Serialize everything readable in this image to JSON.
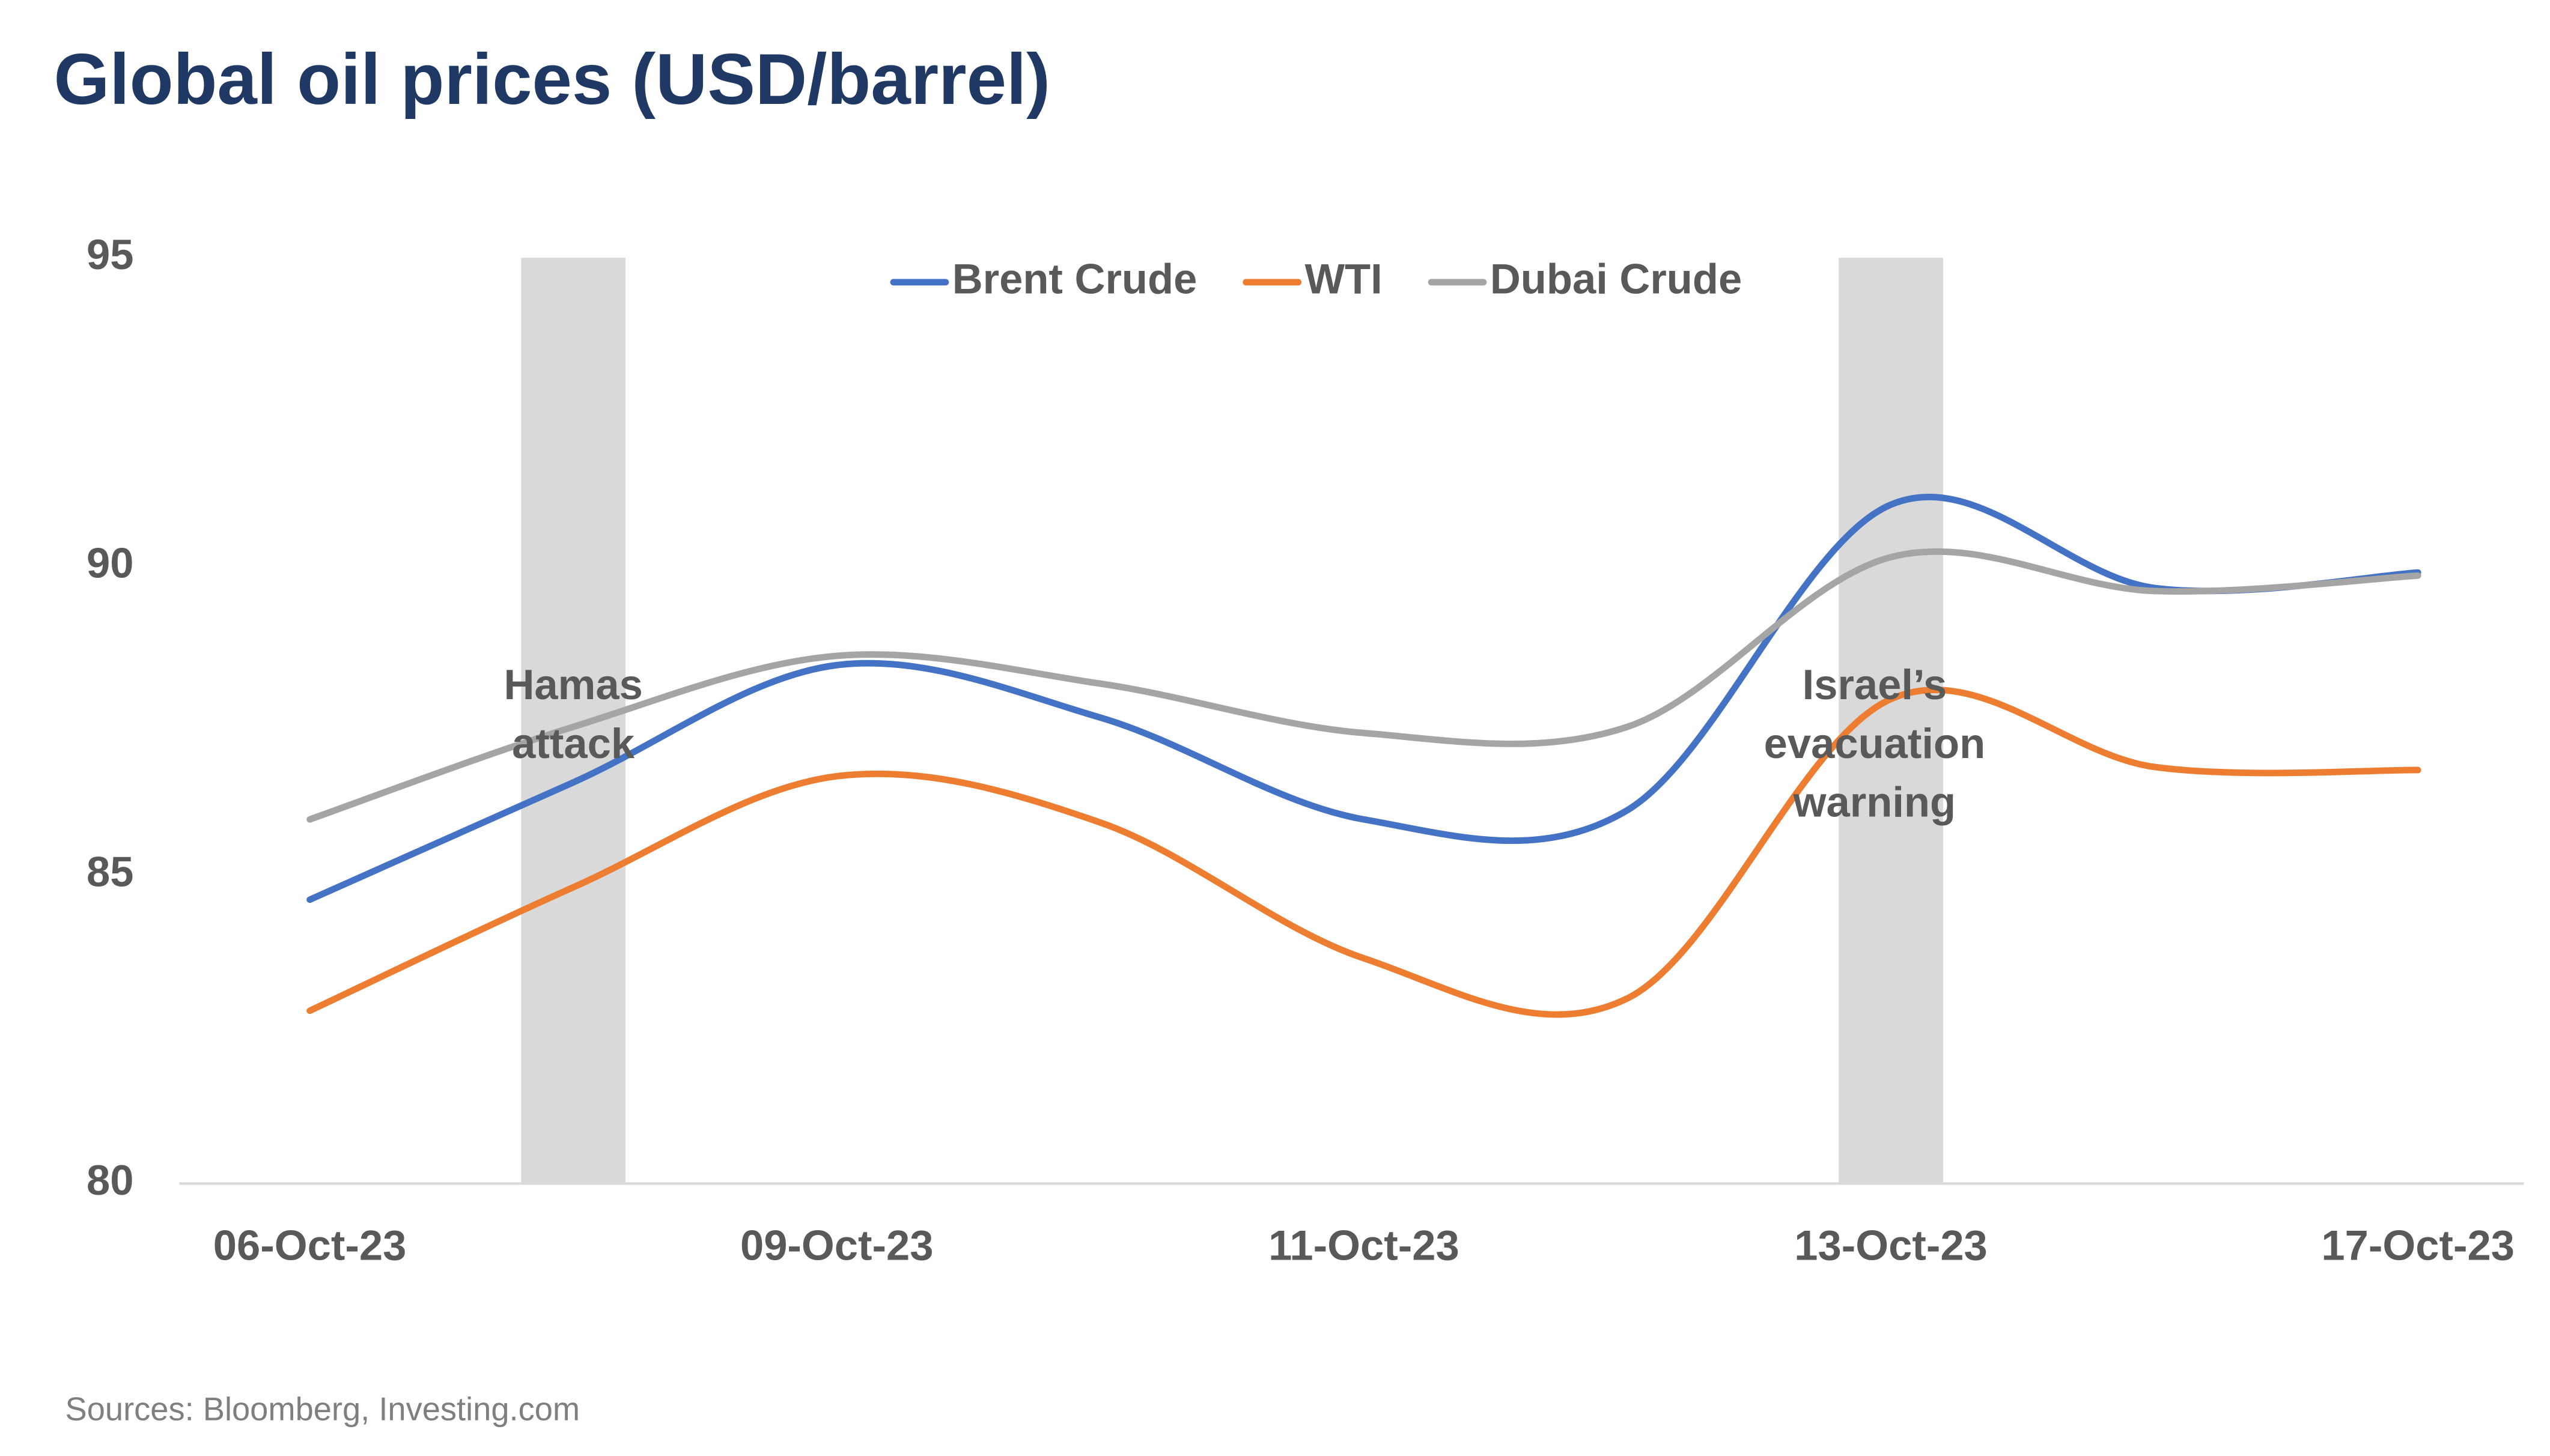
{
  "chart_data": {
    "type": "line",
    "title": "Global oil prices (USD/barrel)",
    "categories": [
      "06-Oct-23",
      null,
      "09-Oct-23",
      null,
      "11-Oct-23",
      null,
      "13-Oct-23",
      null,
      "17-Oct-23"
    ],
    "series": [
      {
        "name": "Brent Crude",
        "color": "#4472c4",
        "values": [
          84.6,
          86.5,
          88.4,
          87.55,
          85.9,
          86.05,
          91.0,
          89.65,
          89.9
        ]
      },
      {
        "name": "WTI",
        "color": "#ed7d31",
        "values": [
          82.8,
          84.8,
          86.6,
          85.85,
          83.65,
          83.0,
          87.85,
          86.75,
          86.7
        ]
      },
      {
        "name": "Dubai Crude",
        "color": "#a5a5a5",
        "values": [
          85.9,
          87.4,
          88.55,
          88.1,
          87.3,
          87.4,
          90.15,
          89.6,
          89.85
        ]
      }
    ],
    "ylim": [
      80,
      95
    ],
    "yticks": [
      80,
      85,
      90,
      95
    ],
    "grid": false,
    "legend": "top",
    "annotations": [
      [
        "Hamas",
        "attack"
      ],
      [
        "Israel’s",
        "evacuation",
        "warning"
      ]
    ],
    "source": "Sources: Bloomberg, Investing.com"
  }
}
